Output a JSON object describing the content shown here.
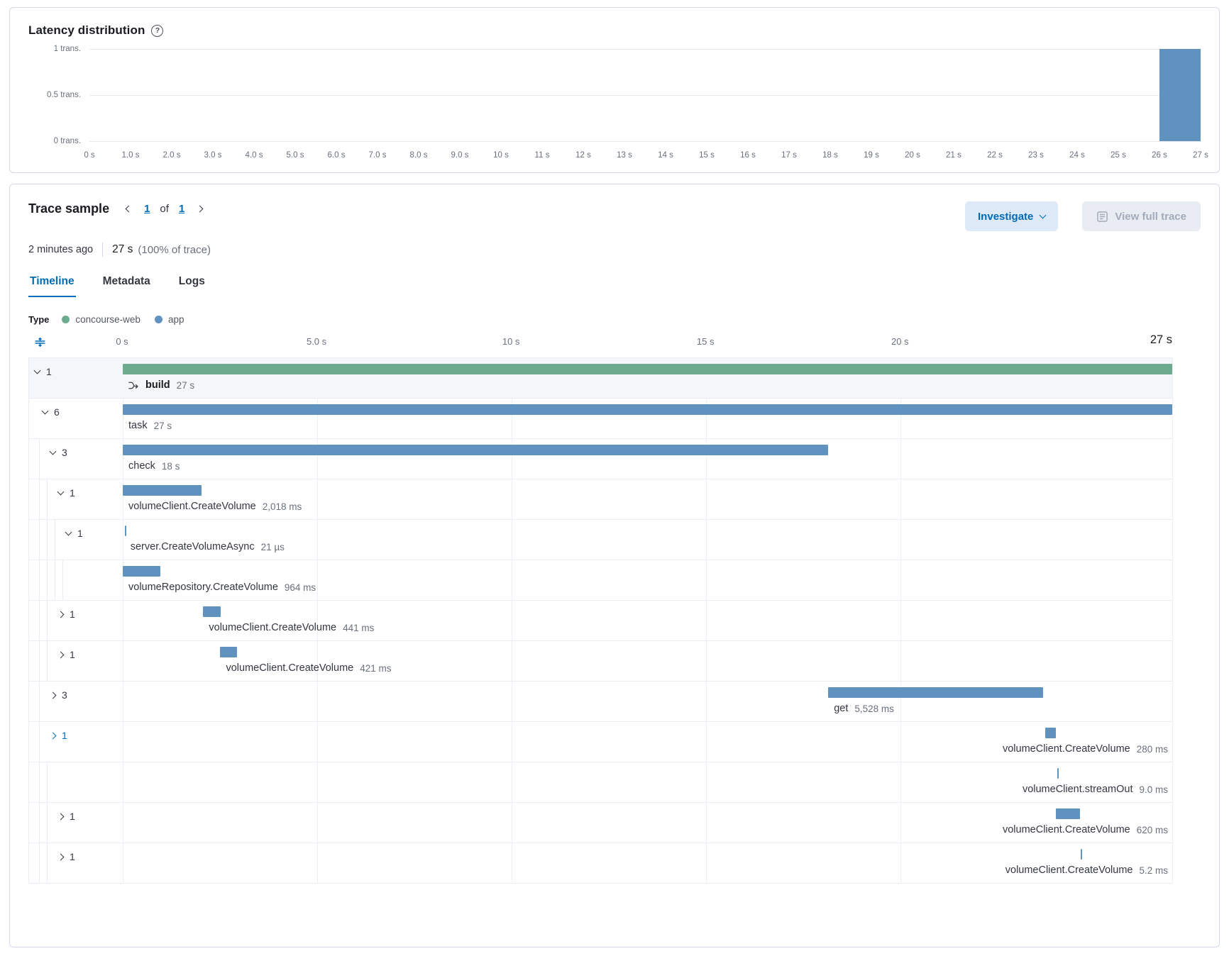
{
  "latency": {
    "title": "Latency distribution",
    "chart_data": {
      "type": "bar",
      "title": "Latency distribution",
      "x_range_s": [
        0,
        27
      ],
      "y_range_trans": [
        0,
        1
      ],
      "grid": "horizontal",
      "y_tick_labels": [
        "1 trans.",
        "0.5 trans.",
        "0 trans."
      ],
      "y_tick_values": [
        1,
        0.5,
        0
      ],
      "x_tick_labels": [
        "0 s",
        "1.0 s",
        "2.0 s",
        "3.0 s",
        "4.0 s",
        "5.0 s",
        "6.0 s",
        "7.0 s",
        "8.0 s",
        "9.0 s",
        "10 s",
        "11 s",
        "12 s",
        "13 s",
        "14 s",
        "15 s",
        "16 s",
        "17 s",
        "18 s",
        "19 s",
        "20 s",
        "21 s",
        "22 s",
        "23 s",
        "24 s",
        "25 s",
        "26 s",
        "27 s"
      ],
      "bars": [
        {
          "bin_start_s": 26,
          "bin_end_s": 27,
          "count": 1
        }
      ],
      "bar_color": "#6092c0"
    }
  },
  "trace": {
    "title": "Trace sample",
    "pagination": {
      "current": "1",
      "of": "of",
      "total": "1"
    },
    "age": "2 minutes ago",
    "duration": "27 s",
    "duration_suffix": "(100% of trace)",
    "investigate": {
      "label": "Investigate"
    },
    "view_full_trace": {
      "label": "View full trace"
    },
    "tabs": [
      {
        "label": "Timeline",
        "active": true
      },
      {
        "label": "Metadata",
        "active": false
      },
      {
        "label": "Logs",
        "active": false
      }
    ],
    "legend": {
      "label": "Type",
      "items": [
        {
          "label": "concourse-web",
          "color": "#6dab8e"
        },
        {
          "label": "app",
          "color": "#6092c0"
        }
      ]
    },
    "timeline": {
      "total_s": 27,
      "ticks": [
        {
          "label": "0 s",
          "t": 0
        },
        {
          "label": "5.0 s",
          "t": 5
        },
        {
          "label": "10 s",
          "t": 10
        },
        {
          "label": "15 s",
          "t": 15
        },
        {
          "label": "20 s",
          "t": 20
        }
      ],
      "end_label": "27 s",
      "rows": [
        {
          "chevron": "down",
          "count": "1",
          "depth": 0,
          "service": "concourse-web",
          "start_s": 0,
          "dur_s": 27,
          "name": "build",
          "bold": true,
          "icon": "transaction",
          "duration": "27 s",
          "selected": true
        },
        {
          "chevron": "down",
          "count": "6",
          "depth": 1,
          "service": "app",
          "start_s": 0,
          "dur_s": 27,
          "name": "task",
          "duration": "27 s"
        },
        {
          "chevron": "down",
          "count": "3",
          "depth": 2,
          "service": "app",
          "start_s": 0,
          "dur_s": 18.15,
          "name": "check",
          "duration": "18 s"
        },
        {
          "chevron": "down",
          "count": "1",
          "depth": 3,
          "service": "app",
          "start_s": 0,
          "dur_s": 2.018,
          "name": "volumeClient.CreateVolume",
          "duration": "2,018 ms"
        },
        {
          "chevron": "down",
          "count": "1",
          "depth": 4,
          "service": "app",
          "start_s": 0.05,
          "dur_s": 2.1e-05,
          "name": "server.CreateVolumeAsync",
          "duration": "21 µs"
        },
        {
          "chevron": null,
          "count": null,
          "depth": 5,
          "service": "app",
          "start_s": 0,
          "dur_s": 0.964,
          "name": "volumeRepository.CreateVolume",
          "duration": "964 ms"
        },
        {
          "chevron": "right",
          "count": "1",
          "depth": 3,
          "service": "app",
          "start_s": 2.07,
          "dur_s": 0.441,
          "name": "volumeClient.CreateVolume",
          "duration": "441 ms"
        },
        {
          "chevron": "right",
          "count": "1",
          "depth": 3,
          "service": "app",
          "start_s": 2.51,
          "dur_s": 0.421,
          "name": "volumeClient.CreateVolume",
          "duration": "421 ms"
        },
        {
          "chevron": "right",
          "count": "3",
          "depth": 2,
          "service": "app",
          "start_s": 18.15,
          "dur_s": 5.528,
          "name": "get",
          "duration": "5,528 ms"
        },
        {
          "chevron": "right",
          "count": "1",
          "depth": 2,
          "service": "app",
          "start_s": 23.73,
          "dur_s": 0.28,
          "name": "volumeClient.CreateVolume",
          "duration": "280 ms",
          "label_align": "right",
          "highlight": true
        },
        {
          "chevron": null,
          "count": null,
          "depth": 3,
          "service": "app",
          "start_s": 24.05,
          "dur_s": 0.009,
          "name": "volumeClient.streamOut",
          "duration": "9.0 ms",
          "label_align": "right"
        },
        {
          "chevron": "right",
          "count": "1",
          "depth": 3,
          "service": "app",
          "start_s": 24.0,
          "dur_s": 0.62,
          "name": "volumeClient.CreateVolume",
          "duration": "620 ms",
          "label_align": "right"
        },
        {
          "chevron": "right",
          "count": "1",
          "depth": 3,
          "service": "app",
          "start_s": 24.65,
          "dur_s": 0.0052,
          "name": "volumeClient.CreateVolume",
          "duration": "5.2 ms",
          "label_align": "right"
        }
      ]
    }
  }
}
